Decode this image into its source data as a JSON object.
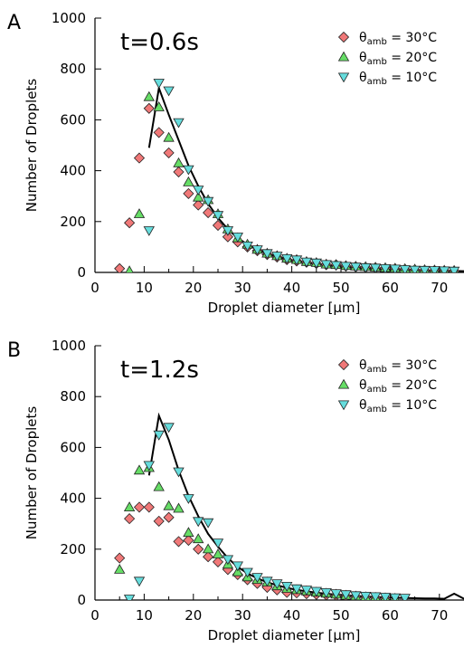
{
  "colors": {
    "theta_30": "#f07878",
    "theta_20": "#66dd66",
    "theta_10": "#66dddd",
    "simulation_line": "#000000",
    "marker_stroke": "#222222"
  },
  "chart_data": [
    {
      "type": "scatter",
      "panel_label": "A",
      "annotation": "t=0.6s",
      "xlabel": "Droplet diameter [μm]",
      "ylabel": "Number of Droplets",
      "xlim": [
        0,
        75
      ],
      "ylim": [
        0,
        1000
      ],
      "xticks": [
        0,
        10,
        20,
        30,
        40,
        50,
        60,
        70
      ],
      "yticks": [
        0,
        200,
        400,
        600,
        800,
        1000
      ],
      "legend_position": "top-right",
      "series": [
        {
          "legend_label": "θamb = 30°C",
          "legend_base": "θ",
          "legend_sub": "amb",
          "legend_value": " = 30°C",
          "marker": "diamond",
          "color_key": "theta_30",
          "x": [
            5,
            7,
            9,
            11,
            13,
            15,
            17,
            19,
            21,
            23,
            25,
            27,
            29,
            31,
            33,
            35,
            37,
            39,
            41,
            43,
            45,
            47,
            49,
            51,
            53,
            55,
            57,
            59,
            61,
            63,
            65,
            67,
            69,
            71,
            73
          ],
          "y": [
            15,
            195,
            450,
            645,
            550,
            470,
            395,
            310,
            265,
            235,
            185,
            140,
            120,
            100,
            85,
            70,
            60,
            50,
            45,
            40,
            35,
            30,
            30,
            25,
            22,
            20,
            18,
            16,
            14,
            12,
            10,
            8,
            7,
            6,
            5
          ]
        },
        {
          "legend_label": "θamb = 20°C",
          "legend_base": "θ",
          "legend_sub": "amb",
          "legend_value": " = 20°C",
          "marker": "triangle-up",
          "color_key": "theta_20",
          "x": [
            7,
            9,
            11,
            13,
            15,
            17,
            19,
            21,
            23,
            25,
            27,
            29,
            31,
            33,
            35,
            37,
            39,
            41,
            43,
            45,
            47,
            49,
            51,
            53,
            55,
            57,
            59,
            61,
            63,
            65,
            67,
            69,
            71,
            73
          ],
          "y": [
            5,
            230,
            690,
            650,
            530,
            430,
            355,
            295,
            285,
            230,
            170,
            135,
            110,
            90,
            75,
            65,
            55,
            50,
            42,
            38,
            32,
            30,
            26,
            24,
            22,
            20,
            18,
            16,
            14,
            12,
            10,
            9,
            8,
            7
          ]
        },
        {
          "legend_label": "θamb = 10°C",
          "legend_base": "θ",
          "legend_sub": "amb",
          "legend_value": " = 10°C",
          "marker": "triangle-down",
          "color_key": "theta_10",
          "x": [
            11,
            13,
            15,
            17,
            19,
            21,
            23,
            25,
            27,
            29,
            31,
            33,
            35,
            37,
            39,
            41,
            43,
            45,
            47,
            49,
            51,
            53,
            55,
            57,
            59,
            61,
            63,
            65,
            67,
            69,
            71,
            73
          ],
          "y": [
            165,
            745,
            715,
            590,
            405,
            325,
            280,
            225,
            165,
            140,
            105,
            90,
            75,
            65,
            55,
            50,
            42,
            38,
            32,
            28,
            25,
            22,
            20,
            18,
            16,
            14,
            12,
            10,
            9,
            8,
            7,
            6
          ]
        }
      ],
      "line": {
        "x": [
          11,
          13,
          15,
          17,
          19,
          21,
          23,
          25,
          27,
          29,
          31,
          33,
          35,
          37,
          39,
          41,
          43,
          45,
          47,
          49,
          51,
          53,
          55,
          57,
          59,
          61,
          63,
          65,
          67,
          69,
          71,
          73,
          75
        ],
        "y": [
          490,
          725,
          620,
          520,
          420,
          340,
          270,
          215,
          170,
          135,
          110,
          90,
          75,
          62,
          52,
          45,
          38,
          33,
          28,
          24,
          21,
          18,
          16,
          14,
          12,
          11,
          10,
          9,
          8,
          7,
          6,
          6,
          5
        ]
      }
    },
    {
      "type": "scatter",
      "panel_label": "B",
      "annotation": "t=1.2s",
      "xlabel": "Droplet diameter [μm]",
      "ylabel": "Number of Droplets",
      "xlim": [
        0,
        75
      ],
      "ylim": [
        0,
        1000
      ],
      "xticks": [
        0,
        10,
        20,
        30,
        40,
        50,
        60,
        70
      ],
      "yticks": [
        0,
        200,
        400,
        600,
        800,
        1000
      ],
      "legend_position": "top-right",
      "series": [
        {
          "legend_label": "θamb = 30°C",
          "legend_base": "θ",
          "legend_sub": "amb",
          "legend_value": " = 30°C",
          "marker": "diamond",
          "color_key": "theta_30",
          "x": [
            5,
            7,
            9,
            11,
            13,
            15,
            17,
            19,
            21,
            23,
            25,
            27,
            29,
            31,
            33,
            35,
            37,
            39,
            41,
            43,
            45,
            47,
            49,
            51,
            53,
            55,
            57,
            59
          ],
          "y": [
            165,
            320,
            365,
            365,
            310,
            325,
            230,
            235,
            200,
            170,
            150,
            120,
            100,
            80,
            65,
            50,
            40,
            30,
            28,
            25,
            22,
            20,
            18,
            15,
            12,
            10,
            8,
            6
          ]
        },
        {
          "legend_label": "θamb = 20°C",
          "legend_base": "θ",
          "legend_sub": "amb",
          "legend_value": " = 20°C",
          "marker": "triangle-up",
          "color_key": "theta_20",
          "x": [
            5,
            7,
            9,
            11,
            13,
            15,
            17,
            19,
            21,
            23,
            25,
            27,
            29,
            31,
            33,
            35,
            37,
            39,
            41,
            43,
            45,
            47,
            49,
            51,
            53,
            55,
            57,
            59,
            61
          ],
          "y": [
            120,
            365,
            510,
            520,
            445,
            370,
            360,
            265,
            240,
            200,
            180,
            140,
            110,
            90,
            80,
            70,
            55,
            45,
            40,
            35,
            30,
            26,
            22,
            18,
            15,
            12,
            10,
            8,
            6
          ]
        },
        {
          "legend_label": "θamb = 10°C",
          "legend_base": "θ",
          "legend_sub": "amb",
          "legend_value": " = 10°C",
          "marker": "triangle-down",
          "color_key": "theta_10",
          "x": [
            7,
            9,
            11,
            13,
            15,
            17,
            19,
            21,
            23,
            25,
            27,
            29,
            31,
            33,
            35,
            37,
            39,
            41,
            43,
            45,
            47,
            49,
            51,
            53,
            55,
            57,
            59,
            61,
            63
          ],
          "y": [
            5,
            75,
            530,
            650,
            680,
            505,
            400,
            310,
            305,
            225,
            160,
            135,
            110,
            90,
            75,
            65,
            55,
            45,
            40,
            35,
            30,
            26,
            22,
            18,
            16,
            14,
            12,
            10,
            8
          ]
        }
      ],
      "line": {
        "x": [
          11,
          13,
          15,
          17,
          19,
          21,
          23,
          25,
          27,
          29,
          31,
          33,
          35,
          37,
          39,
          41,
          43,
          45,
          47,
          49,
          51,
          53,
          55,
          57,
          59,
          61,
          63,
          65,
          67,
          69,
          71,
          73,
          75
        ],
        "y": [
          490,
          725,
          630,
          510,
          410,
          330,
          260,
          210,
          165,
          130,
          105,
          85,
          70,
          58,
          48,
          40,
          34,
          29,
          25,
          21,
          18,
          16,
          14,
          12,
          10,
          9,
          8,
          7,
          6,
          6,
          5,
          25,
          5
        ]
      }
    }
  ]
}
